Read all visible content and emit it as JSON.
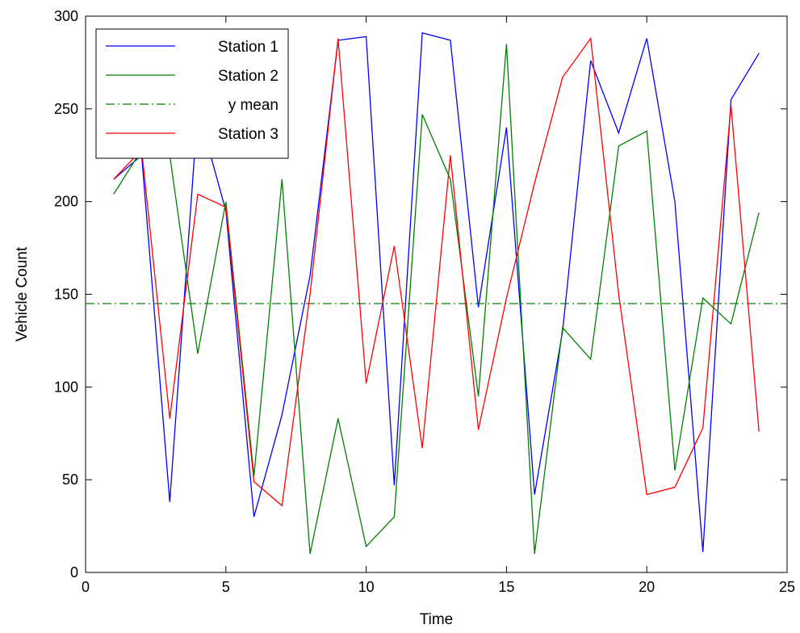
{
  "chart_data": {
    "type": "line",
    "title": "",
    "xlabel": "Time",
    "ylabel": "Vehicle Count",
    "xlim": [
      0,
      25
    ],
    "ylim": [
      0,
      300
    ],
    "xticks": [
      0,
      5,
      10,
      15,
      20,
      25
    ],
    "yticks": [
      0,
      50,
      100,
      150,
      200,
      250,
      300
    ],
    "grid": false,
    "legend_position": "top-left",
    "x": [
      1,
      2,
      3,
      4,
      5,
      6,
      7,
      8,
      9,
      10,
      11,
      12,
      13,
      14,
      15,
      16,
      17,
      18,
      19,
      20,
      21,
      22,
      23,
      24
    ],
    "series": [
      {
        "name": "Station 1",
        "color": "#0000ff",
        "style": "solid",
        "values": [
          212,
          225,
          38,
          250,
          195,
          30,
          85,
          160,
          287,
          289,
          47,
          291,
          287,
          143,
          240,
          42,
          130,
          276,
          237,
          288,
          200,
          11,
          255,
          280
        ]
      },
      {
        "name": "Station 2",
        "color": "#008000",
        "style": "solid",
        "values": [
          204,
          228,
          225,
          118,
          200,
          52,
          212,
          10,
          83,
          14,
          30,
          247,
          212,
          95,
          285,
          10,
          132,
          115,
          230,
          238,
          55,
          148,
          134,
          194
        ]
      },
      {
        "name": "y mean",
        "color": "#008000",
        "style": "dashdot",
        "constant": 145
      },
      {
        "name": "Station 3",
        "color": "#ff0000",
        "style": "solid",
        "values": [
          212,
          228,
          83,
          204,
          197,
          49,
          36,
          150,
          288,
          102,
          176,
          67,
          225,
          77,
          148,
          210,
          267,
          288,
          150,
          42,
          46,
          78,
          252,
          76
        ]
      }
    ]
  }
}
